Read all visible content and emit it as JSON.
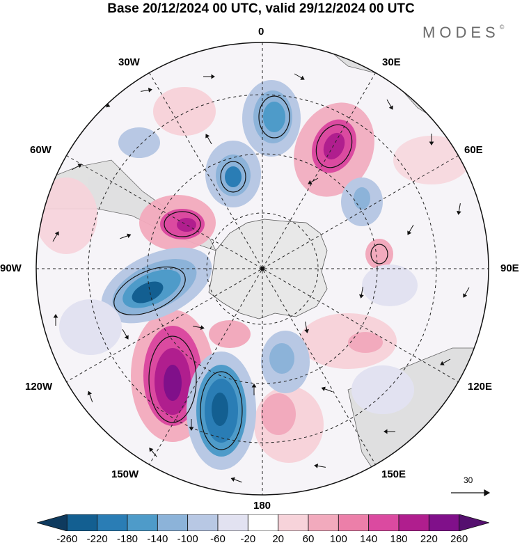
{
  "title": "Base 20/12/2024 00 UTC, valid 29/12/2024 00 UTC",
  "brand": "MODES",
  "brand_mark": "©",
  "longitude_labels": {
    "top": "0",
    "top_right": "30E",
    "upper_right": "60E",
    "right": "90E",
    "lower_right": "120E",
    "bottom_right": "150E",
    "bottom": "180",
    "bottom_left": "150W",
    "lower_left": "120W",
    "left": "90W",
    "upper_left": "60W",
    "top_left": "30W"
  },
  "reference_vector": {
    "label": "30",
    "value": 30
  },
  "colorbar": {
    "tick_labels": [
      "-260",
      "-220",
      "-180",
      "-140",
      "-100",
      "-60",
      "-20",
      "20",
      "60",
      "100",
      "140",
      "180",
      "220",
      "260"
    ],
    "colors": [
      "#0e3a5e",
      "#135f91",
      "#2a7db5",
      "#4e9bc9",
      "#8cb3d9",
      "#b8c8e4",
      "#e2e2f1",
      "#ffffff",
      "#f7d3da",
      "#f2aabd",
      "#ec7fa9",
      "#db4aa0",
      "#b01e8e",
      "#80108a",
      "#55106f"
    ]
  },
  "colors": {
    "land": "#e6e6e6",
    "coast": "#555555",
    "grid": "#222222"
  }
}
